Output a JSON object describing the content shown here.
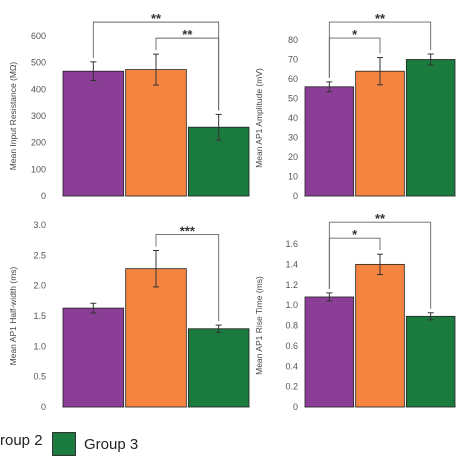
{
  "colors": {
    "group1": "#8B3E96",
    "group2": "#F4843F",
    "group3": "#1B7B3F"
  },
  "legend": {
    "group2_label": "roup 2",
    "group3_label": "Group 3"
  },
  "chart_data": [
    {
      "type": "bar",
      "ylabel": "Mean Input Resistance (MΩ)",
      "ylim": [
        0,
        600
      ],
      "yticks": [
        0,
        100,
        200,
        300,
        400,
        500,
        600
      ],
      "ytick_labels": [
        "0",
        "100",
        "200",
        "300",
        "400",
        "500",
        "600"
      ],
      "values": [
        468,
        474,
        258
      ],
      "errors": [
        35,
        58,
        48
      ],
      "significance": [
        {
          "from": 0,
          "to": 2,
          "label": "**"
        },
        {
          "from": 1,
          "to": 2,
          "label": "**"
        }
      ]
    },
    {
      "type": "bar",
      "ylabel": "Mean AP1 Amplitude (mV)",
      "ylim": [
        0,
        80
      ],
      "yticks": [
        0,
        10,
        20,
        30,
        40,
        50,
        60,
        70,
        80
      ],
      "ytick_labels": [
        "0",
        "10",
        "20",
        "30",
        "40",
        "50",
        "60",
        "70",
        "80"
      ],
      "values": [
        56,
        64,
        70
      ],
      "errors": [
        2.5,
        7,
        2.8
      ],
      "significance": [
        {
          "from": 0,
          "to": 1,
          "label": "*"
        },
        {
          "from": 0,
          "to": 2,
          "label": "**"
        }
      ]
    },
    {
      "type": "bar",
      "ylabel": "Mean AP1 Half-width (ms)",
      "ylim": [
        0,
        3.0
      ],
      "yticks": [
        0,
        0.5,
        1.0,
        1.5,
        2.0,
        2.5,
        3.0
      ],
      "ytick_labels": [
        "0",
        "0.5",
        "1.0",
        "1.5",
        "2.0",
        "2.5",
        "3.0"
      ],
      "values": [
        1.63,
        2.28,
        1.29
      ],
      "errors": [
        0.08,
        0.3,
        0.06
      ],
      "significance": [
        {
          "from": 1,
          "to": 2,
          "label": "***"
        }
      ]
    },
    {
      "type": "bar",
      "ylabel": "Mean AP1 Rise Time (ms)",
      "ylim": [
        0,
        1.6
      ],
      "yticks": [
        0,
        0.2,
        0.4,
        0.6,
        0.8,
        1.0,
        1.2,
        1.4,
        1.6
      ],
      "ytick_labels": [
        "0",
        "0.2",
        "0.4",
        "0.6",
        "0.8",
        "1.0",
        "1.2",
        "1.4",
        "1.6"
      ],
      "values": [
        1.08,
        1.4,
        0.89
      ],
      "errors": [
        0.04,
        0.1,
        0.035
      ],
      "significance": [
        {
          "from": 0,
          "to": 1,
          "label": "*"
        },
        {
          "from": 0,
          "to": 2,
          "label": "**"
        }
      ]
    }
  ]
}
